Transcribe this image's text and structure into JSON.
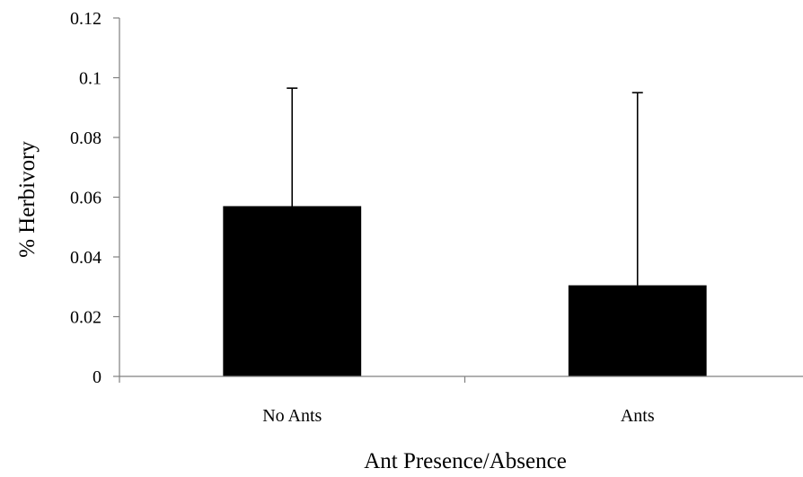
{
  "chart_data": {
    "type": "bar",
    "categories": [
      "No Ants",
      "Ants"
    ],
    "values": [
      0.057,
      0.0305
    ],
    "error_upper": [
      0.0965,
      0.095
    ],
    "title": "",
    "xlabel": "Ant Presence/Absence",
    "ylabel": "% Herbivory",
    "ylim": [
      0,
      0.12
    ],
    "yticks": [
      0,
      0.02,
      0.04,
      0.06,
      0.08,
      0.1,
      0.12
    ],
    "ytick_labels": [
      "0",
      "0.02",
      "0.04",
      "0.06",
      "0.08",
      "0.1",
      "0.12"
    ],
    "grid": false,
    "legend": "none",
    "colors": {
      "bar": "#000000",
      "axis": "#808080"
    }
  }
}
